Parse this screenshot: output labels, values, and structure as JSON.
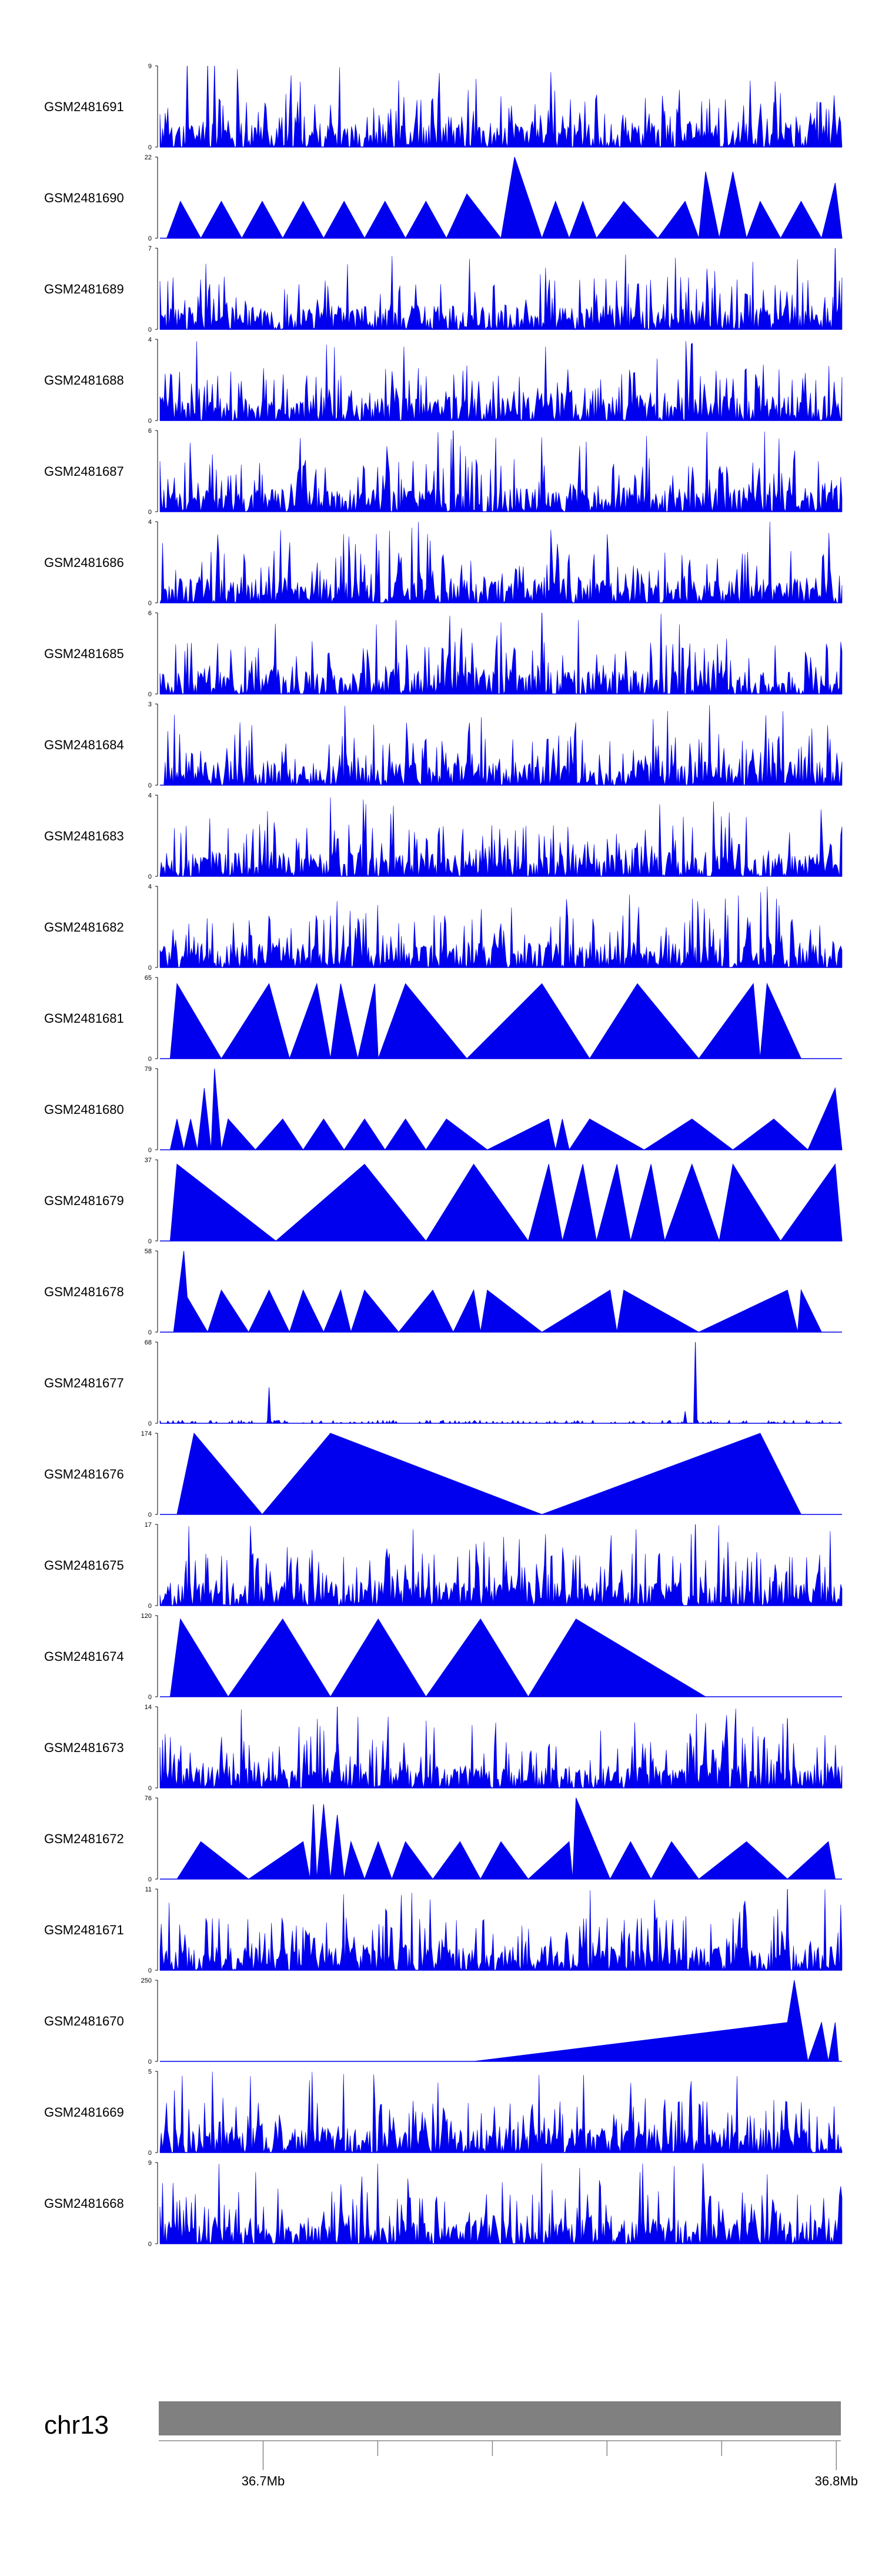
{
  "chart_data": {
    "type": "area",
    "chromosome": "chr13",
    "position_ticks": [
      {
        "label": "36.7Mb",
        "value": 36.7
      },
      {
        "label": "36.8Mb",
        "value": 36.8
      }
    ],
    "x_range_mb": [
      36.682,
      36.801
    ],
    "fill_color": "#0000ee",
    "ideogram_color": "#808080",
    "tracks": [
      {
        "name": "GSM2481691",
        "ymax": "9",
        "style": "spiky",
        "seed": 11,
        "spikes": [
          [
            0.04,
            9
          ],
          [
            0.07,
            9
          ],
          [
            0.08,
            9
          ],
          [
            0.74,
            4
          ],
          [
            0.9,
            5
          ]
        ]
      },
      {
        "name": "GSM2481690",
        "ymax": "22",
        "style": "tri",
        "seed": 0,
        "peaks": [
          [
            0.01,
            0
          ],
          [
            0.03,
            10
          ],
          [
            0.06,
            0
          ],
          [
            0.09,
            10
          ],
          [
            0.12,
            0
          ],
          [
            0.15,
            10
          ],
          [
            0.18,
            0
          ],
          [
            0.21,
            10
          ],
          [
            0.24,
            0
          ],
          [
            0.27,
            10
          ],
          [
            0.3,
            0
          ],
          [
            0.33,
            10
          ],
          [
            0.36,
            0
          ],
          [
            0.39,
            10
          ],
          [
            0.42,
            0
          ],
          [
            0.45,
            12
          ],
          [
            0.5,
            0
          ],
          [
            0.52,
            22
          ],
          [
            0.56,
            0
          ],
          [
            0.58,
            10
          ],
          [
            0.6,
            0
          ],
          [
            0.62,
            10
          ],
          [
            0.64,
            0
          ],
          [
            0.68,
            10
          ],
          [
            0.73,
            0
          ],
          [
            0.77,
            10
          ],
          [
            0.79,
            0
          ],
          [
            0.8,
            18
          ],
          [
            0.82,
            0
          ],
          [
            0.84,
            18
          ],
          [
            0.86,
            0
          ],
          [
            0.88,
            10
          ],
          [
            0.91,
            0
          ],
          [
            0.94,
            10
          ],
          [
            0.97,
            0
          ],
          [
            0.99,
            15
          ],
          [
            1.0,
            0
          ]
        ]
      },
      {
        "name": "GSM2481689",
        "ymax": "7",
        "style": "spiky",
        "seed": 23,
        "spikes": [
          [
            0.99,
            7
          ]
        ]
      },
      {
        "name": "GSM2481688",
        "ymax": "4",
        "style": "spiky",
        "seed": 37,
        "spikes": []
      },
      {
        "name": "GSM2481687",
        "ymax": "6",
        "style": "spiky",
        "seed": 41,
        "spikes": [
          [
            0.43,
            6
          ]
        ]
      },
      {
        "name": "GSM2481686",
        "ymax": "4",
        "style": "spiky",
        "seed": 53,
        "spikes": []
      },
      {
        "name": "GSM2481685",
        "ymax": "6",
        "style": "spiky",
        "seed": 67,
        "spikes": [
          [
            0.56,
            6
          ]
        ]
      },
      {
        "name": "GSM2481684",
        "ymax": "3",
        "style": "spiky",
        "seed": 71,
        "spikes": []
      },
      {
        "name": "GSM2481683",
        "ymax": "4",
        "style": "spiky",
        "seed": 83,
        "spikes": []
      },
      {
        "name": "GSM2481682",
        "ymax": "4",
        "style": "spiky",
        "seed": 97,
        "spikes": []
      },
      {
        "name": "GSM2481681",
        "ymax": "65",
        "style": "tri",
        "seed": 0,
        "peaks": [
          [
            0.015,
            0
          ],
          [
            0.025,
            60
          ],
          [
            0.09,
            0
          ],
          [
            0.16,
            60
          ],
          [
            0.19,
            0
          ],
          [
            0.23,
            60
          ],
          [
            0.25,
            0
          ],
          [
            0.265,
            60
          ],
          [
            0.29,
            0
          ],
          [
            0.315,
            60
          ],
          [
            0.32,
            0
          ],
          [
            0.36,
            60
          ],
          [
            0.45,
            0
          ],
          [
            0.56,
            60
          ],
          [
            0.63,
            0
          ],
          [
            0.7,
            60
          ],
          [
            0.79,
            0
          ],
          [
            0.87,
            60
          ],
          [
            0.88,
            0
          ],
          [
            0.89,
            60
          ],
          [
            0.94,
            0
          ]
        ]
      },
      {
        "name": "GSM2481680",
        "ymax": "79",
        "style": "tri",
        "seed": 0,
        "peaks": [
          [
            0.015,
            0
          ],
          [
            0.025,
            30
          ],
          [
            0.035,
            0
          ],
          [
            0.045,
            30
          ],
          [
            0.055,
            0
          ],
          [
            0.065,
            60
          ],
          [
            0.075,
            0
          ],
          [
            0.08,
            79
          ],
          [
            0.09,
            0
          ],
          [
            0.1,
            30
          ],
          [
            0.14,
            0
          ],
          [
            0.18,
            30
          ],
          [
            0.21,
            0
          ],
          [
            0.24,
            30
          ],
          [
            0.27,
            0
          ],
          [
            0.3,
            30
          ],
          [
            0.33,
            0
          ],
          [
            0.36,
            30
          ],
          [
            0.39,
            0
          ],
          [
            0.42,
            30
          ],
          [
            0.48,
            0
          ],
          [
            0.57,
            30
          ],
          [
            0.58,
            0
          ],
          [
            0.59,
            30
          ],
          [
            0.6,
            0
          ],
          [
            0.63,
            30
          ],
          [
            0.71,
            0
          ],
          [
            0.78,
            30
          ],
          [
            0.84,
            0
          ],
          [
            0.9,
            30
          ],
          [
            0.95,
            0
          ],
          [
            0.99,
            60
          ],
          [
            1.0,
            0
          ]
        ]
      },
      {
        "name": "GSM2481679",
        "ymax": "37",
        "style": "tri",
        "seed": 0,
        "peaks": [
          [
            0.015,
            0
          ],
          [
            0.025,
            35
          ],
          [
            0.17,
            0
          ],
          [
            0.3,
            35
          ],
          [
            0.39,
            0
          ],
          [
            0.46,
            35
          ],
          [
            0.54,
            0
          ],
          [
            0.57,
            35
          ],
          [
            0.59,
            0
          ],
          [
            0.62,
            35
          ],
          [
            0.64,
            0
          ],
          [
            0.67,
            35
          ],
          [
            0.69,
            0
          ],
          [
            0.72,
            35
          ],
          [
            0.74,
            0
          ],
          [
            0.78,
            35
          ],
          [
            0.82,
            0
          ],
          [
            0.84,
            35
          ],
          [
            0.91,
            0
          ],
          [
            0.99,
            35
          ],
          [
            1.0,
            0
          ]
        ]
      },
      {
        "name": "GSM2481678",
        "ymax": "58",
        "style": "tri",
        "seed": 0,
        "peaks": [
          [
            0.02,
            0
          ],
          [
            0.035,
            58
          ],
          [
            0.04,
            25
          ],
          [
            0.07,
            0
          ],
          [
            0.09,
            30
          ],
          [
            0.13,
            0
          ],
          [
            0.16,
            30
          ],
          [
            0.19,
            0
          ],
          [
            0.21,
            30
          ],
          [
            0.24,
            0
          ],
          [
            0.265,
            30
          ],
          [
            0.28,
            0
          ],
          [
            0.3,
            30
          ],
          [
            0.35,
            0
          ],
          [
            0.4,
            30
          ],
          [
            0.43,
            0
          ],
          [
            0.46,
            30
          ],
          [
            0.47,
            0
          ],
          [
            0.48,
            30
          ],
          [
            0.56,
            0
          ],
          [
            0.66,
            30
          ],
          [
            0.67,
            0
          ],
          [
            0.68,
            30
          ],
          [
            0.79,
            0
          ],
          [
            0.92,
            30
          ],
          [
            0.935,
            0
          ],
          [
            0.94,
            30
          ],
          [
            0.97,
            0
          ]
        ]
      },
      {
        "name": "GSM2481677",
        "ymax": "68",
        "style": "flat",
        "seed": 101,
        "spikes": [
          [
            0.16,
            30
          ],
          [
            0.77,
            10
          ],
          [
            0.785,
            68
          ]
        ]
      },
      {
        "name": "GSM2481676",
        "ymax": "174",
        "style": "tri",
        "seed": 0,
        "peaks": [
          [
            0.025,
            0
          ],
          [
            0.05,
            174
          ],
          [
            0.15,
            0
          ],
          [
            0.25,
            174
          ],
          [
            0.56,
            0
          ],
          [
            0.88,
            174
          ],
          [
            0.94,
            0
          ]
        ]
      },
      {
        "name": "GSM2481675",
        "ymax": "17",
        "style": "spiky",
        "seed": 113,
        "spikes": [
          [
            0.07,
            10
          ],
          [
            0.785,
            17
          ],
          [
            0.8,
            8
          ]
        ]
      },
      {
        "name": "GSM2481674",
        "ymax": "120",
        "style": "tri",
        "seed": 0,
        "peaks": [
          [
            0.015,
            0
          ],
          [
            0.03,
            115
          ],
          [
            0.1,
            0
          ],
          [
            0.18,
            115
          ],
          [
            0.25,
            0
          ],
          [
            0.32,
            115
          ],
          [
            0.39,
            0
          ],
          [
            0.47,
            115
          ],
          [
            0.54,
            0
          ],
          [
            0.61,
            115
          ],
          [
            0.8,
            0
          ]
        ]
      },
      {
        "name": "GSM2481673",
        "ymax": "14",
        "style": "spiky",
        "seed": 127,
        "spikes": [
          [
            0.26,
            14
          ],
          [
            0.92,
            12
          ]
        ]
      },
      {
        "name": "GSM2481672",
        "ymax": "76",
        "style": "tri",
        "seed": 0,
        "peaks": [
          [
            0.025,
            0
          ],
          [
            0.06,
            35
          ],
          [
            0.13,
            0
          ],
          [
            0.21,
            35
          ],
          [
            0.22,
            0
          ],
          [
            0.225,
            70
          ],
          [
            0.23,
            0
          ],
          [
            0.24,
            70
          ],
          [
            0.25,
            0
          ],
          [
            0.26,
            60
          ],
          [
            0.27,
            0
          ],
          [
            0.28,
            35
          ],
          [
            0.3,
            0
          ],
          [
            0.32,
            35
          ],
          [
            0.34,
            0
          ],
          [
            0.36,
            35
          ],
          [
            0.4,
            0
          ],
          [
            0.44,
            35
          ],
          [
            0.47,
            0
          ],
          [
            0.5,
            35
          ],
          [
            0.54,
            0
          ],
          [
            0.6,
            35
          ],
          [
            0.605,
            0
          ],
          [
            0.61,
            76
          ],
          [
            0.66,
            0
          ],
          [
            0.69,
            35
          ],
          [
            0.72,
            0
          ],
          [
            0.75,
            35
          ],
          [
            0.79,
            0
          ],
          [
            0.86,
            35
          ],
          [
            0.92,
            0
          ],
          [
            0.98,
            35
          ],
          [
            0.99,
            0
          ]
        ]
      },
      {
        "name": "GSM2481671",
        "ymax": "11",
        "style": "spiky",
        "seed": 131,
        "spikes": [
          [
            0.92,
            11
          ]
        ]
      },
      {
        "name": "GSM2481670",
        "ymax": "250",
        "style": "tri",
        "seed": 0,
        "peaks": [
          [
            0.46,
            0
          ],
          [
            0.92,
            120
          ],
          [
            0.93,
            250
          ],
          [
            0.95,
            0
          ],
          [
            0.97,
            120
          ],
          [
            0.98,
            0
          ],
          [
            0.99,
            120
          ],
          [
            0.995,
            0
          ]
        ]
      },
      {
        "name": "GSM2481669",
        "ymax": "5",
        "style": "spiky",
        "seed": 149,
        "spikes": []
      },
      {
        "name": "GSM2481668",
        "ymax": "9",
        "style": "spiky",
        "seed": 157,
        "spikes": []
      }
    ]
  }
}
